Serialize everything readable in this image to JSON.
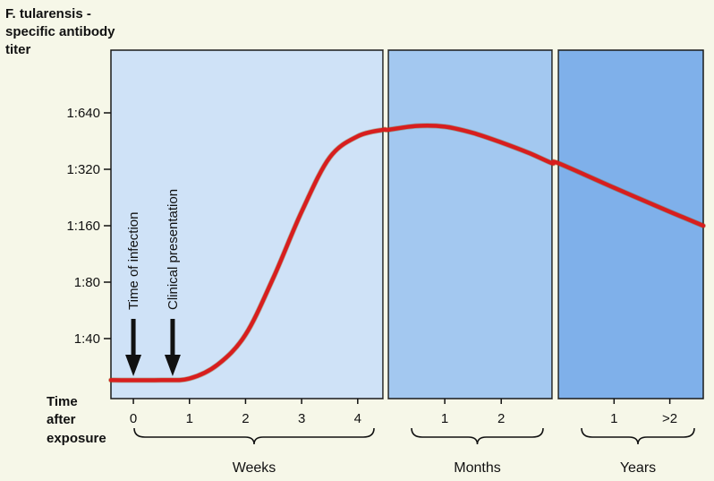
{
  "chart_data": {
    "type": "line",
    "ylabel_lines": [
      "F. tularensis -",
      "specific antibody",
      "titer"
    ],
    "xlabel_lines": [
      "Time",
      "after",
      "exposure"
    ],
    "y_ticks": [
      "1:40",
      "1:80",
      "1:160",
      "1:320",
      "1:640"
    ],
    "y_tick_values": [
      40,
      80,
      160,
      320,
      640
    ],
    "y_scale": "log2",
    "panels": [
      {
        "group_label": "Weeks",
        "tick_labels": [
          "0",
          "1",
          "2",
          "3",
          "4"
        ],
        "tick_values": [
          0,
          1,
          2,
          3,
          4
        ],
        "range": [
          -0.4,
          4.45
        ],
        "color": "#cfe2f7"
      },
      {
        "group_label": "Months",
        "tick_labels": [
          "1",
          "2"
        ],
        "tick_values": [
          1,
          2
        ],
        "range": [
          0,
          2.9
        ],
        "color": "#a3c8f0"
      },
      {
        "group_label": "Years",
        "tick_labels": [
          "1",
          ">2"
        ],
        "tick_values": [
          1,
          2
        ],
        "range": [
          0,
          2.6
        ],
        "color": "#7fb0ea"
      }
    ],
    "annotations": [
      {
        "text": "Time of infection",
        "panel": 0,
        "x": 0
      },
      {
        "text": "Clinical presentation",
        "panel": 0,
        "x": 0.7
      }
    ],
    "series": [
      {
        "color": "#d81e1e",
        "points": [
          {
            "panel": 0,
            "x": -0.4,
            "y": 24
          },
          {
            "panel": 0,
            "x": 0.5,
            "y": 24
          },
          {
            "panel": 0,
            "x": 1.0,
            "y": 24.5
          },
          {
            "panel": 0,
            "x": 1.5,
            "y": 29
          },
          {
            "panel": 0,
            "x": 2.0,
            "y": 42
          },
          {
            "panel": 0,
            "x": 2.5,
            "y": 85
          },
          {
            "panel": 0,
            "x": 3.0,
            "y": 190
          },
          {
            "panel": 0,
            "x": 3.5,
            "y": 370
          },
          {
            "panel": 0,
            "x": 4.0,
            "y": 480
          },
          {
            "panel": 0,
            "x": 4.45,
            "y": 520
          },
          {
            "panel": 1,
            "x": 0.0,
            "y": 520
          },
          {
            "panel": 1,
            "x": 0.5,
            "y": 545
          },
          {
            "panel": 1,
            "x": 1.0,
            "y": 540
          },
          {
            "panel": 1,
            "x": 1.5,
            "y": 500
          },
          {
            "panel": 1,
            "x": 2.0,
            "y": 445
          },
          {
            "panel": 1,
            "x": 2.5,
            "y": 390
          },
          {
            "panel": 1,
            "x": 2.9,
            "y": 345
          },
          {
            "panel": 2,
            "x": 0.0,
            "y": 345
          },
          {
            "panel": 2,
            "x": 1.0,
            "y": 255
          },
          {
            "panel": 2,
            "x": 2.0,
            "y": 190
          },
          {
            "panel": 2,
            "x": 2.6,
            "y": 160
          }
        ]
      }
    ]
  }
}
